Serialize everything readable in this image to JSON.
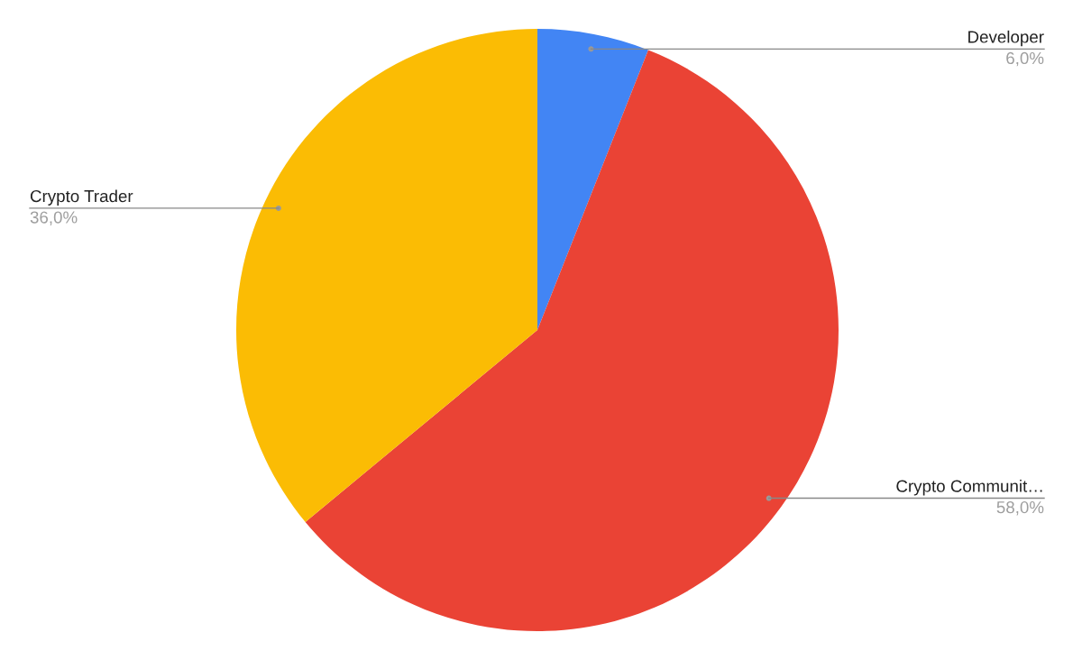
{
  "chart_data": {
    "type": "pie",
    "categories": [
      "Developer",
      "Crypto Communit…",
      "Crypto Trader"
    ],
    "values": [
      6,
      58,
      36
    ],
    "colors": [
      "#4285f4",
      "#ea4335",
      "#fbbc04"
    ],
    "value_labels": [
      "6,0%",
      "58,0%",
      "36,0%"
    ]
  }
}
